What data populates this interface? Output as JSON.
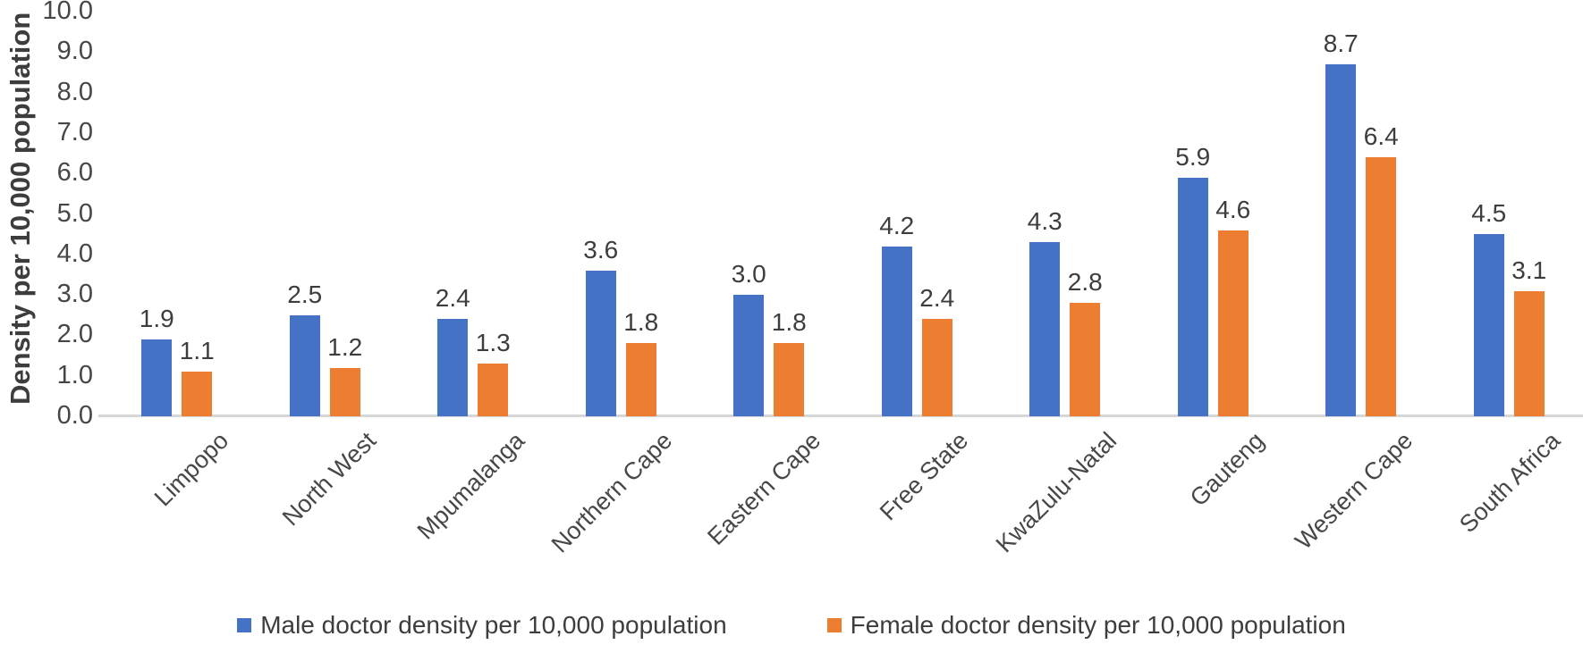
{
  "chart_data": {
    "type": "bar",
    "title": "",
    "xlabel": "",
    "ylabel": "Density per 10,000 population",
    "ylim": [
      0,
      10
    ],
    "ytick_step": 1,
    "ytick_decimals": 1,
    "grid": false,
    "data_labels": true,
    "data_label_decimals": 1,
    "legend_position": "bottom",
    "categories": [
      "Limpopo",
      "North West",
      "Mpumalanga",
      "Northern Cape",
      "Eastern Cape",
      "Free State",
      "KwaZulu-Natal",
      "Gauteng",
      "Western Cape",
      "South Africa"
    ],
    "series": [
      {
        "name": "Male doctor density per 10,000 population",
        "key": "male",
        "color": "#4472C4",
        "values": [
          1.9,
          2.5,
          2.4,
          3.6,
          3.0,
          4.2,
          4.3,
          5.9,
          8.7,
          4.5
        ]
      },
      {
        "name": "Female doctor density per 10,000 population",
        "key": "female",
        "color": "#ED7D31",
        "values": [
          1.1,
          1.2,
          1.3,
          1.8,
          1.8,
          2.4,
          2.8,
          4.6,
          6.4,
          3.1
        ]
      }
    ]
  },
  "style": {
    "axis_line_color": "#d6d6d6",
    "tick_text_color": "#464646",
    "label_text_color": "#3d3d3d"
  }
}
